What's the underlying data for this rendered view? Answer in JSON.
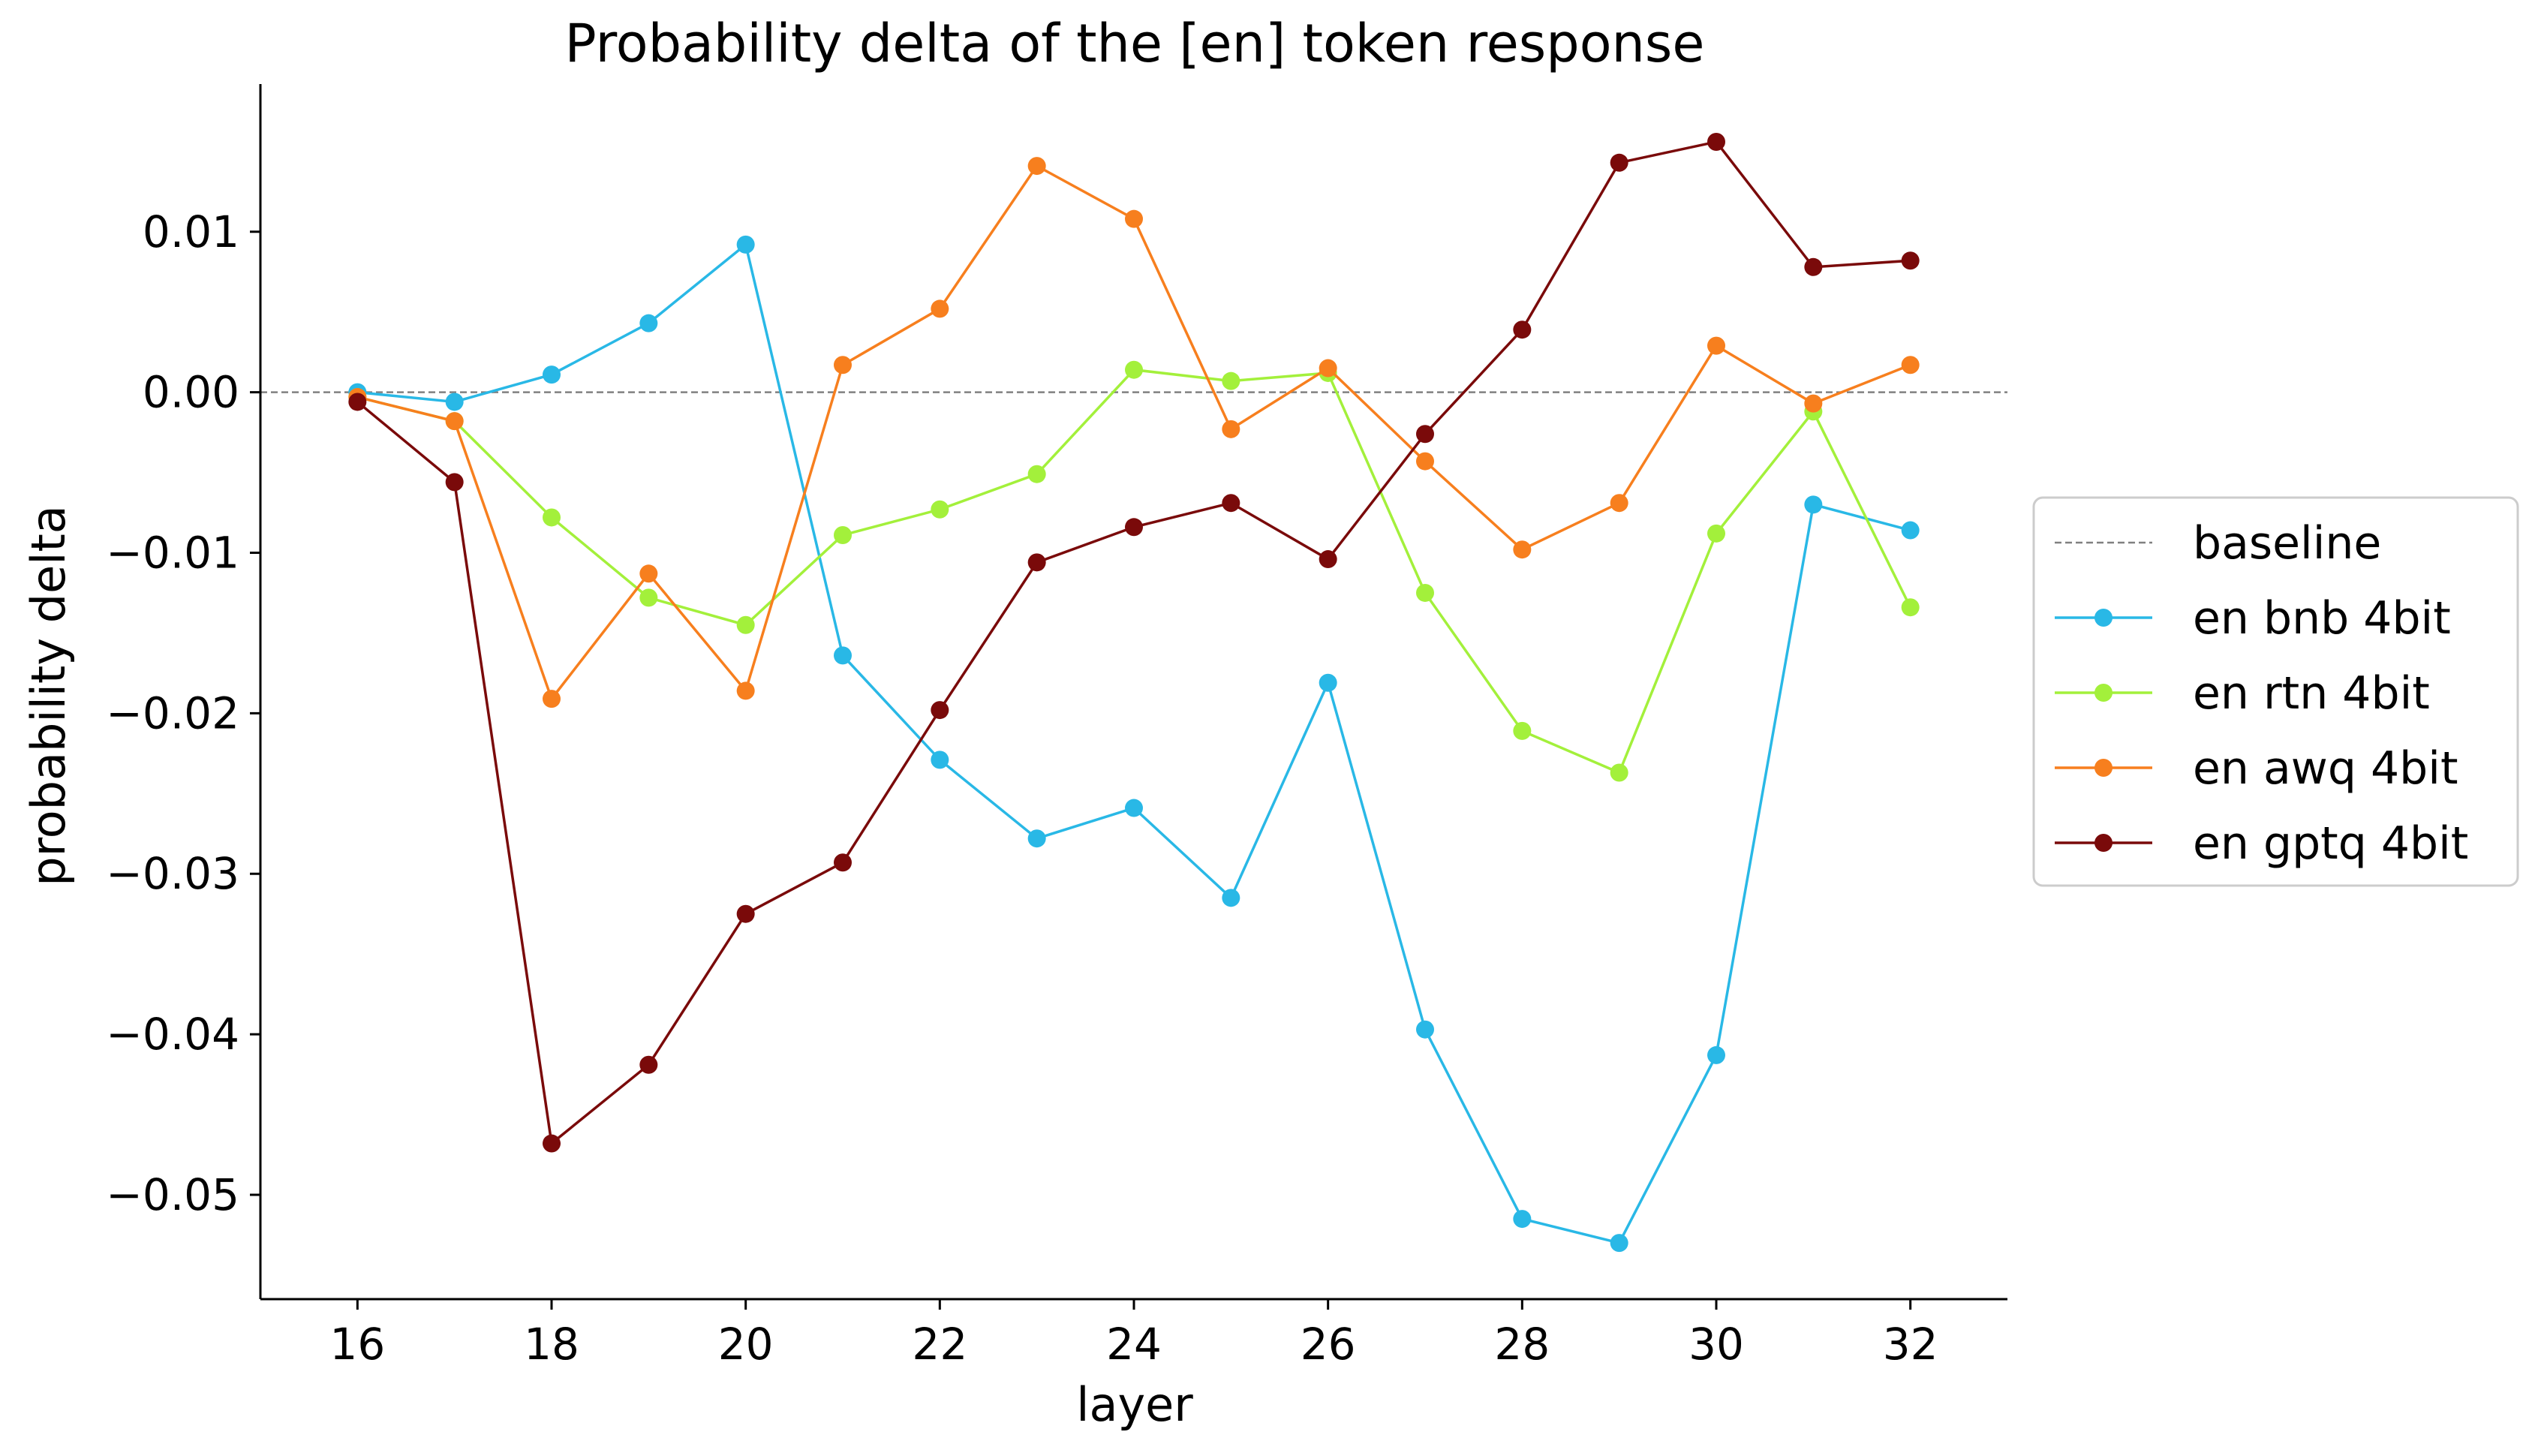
{
  "chart_data": {
    "type": "line",
    "title": "Probability delta of the [en] token response",
    "xlabel": "layer",
    "ylabel": "probability delta",
    "xlim": [
      15,
      33
    ],
    "ylim": [
      -0.0565,
      0.0192
    ],
    "xticks": [
      16,
      18,
      20,
      22,
      24,
      26,
      28,
      30,
      32
    ],
    "yticks": [
      0.01,
      0.0,
      -0.01,
      -0.02,
      -0.03,
      -0.04,
      -0.05
    ],
    "ytick_labels": [
      "0.01",
      "0.00",
      "−0.01",
      "−0.02",
      "−0.03",
      "−0.04",
      "−0.05"
    ],
    "grid": false,
    "legend_position": "center-right-outside",
    "baseline": {
      "name": "baseline",
      "value": 0.0,
      "color": "#808080",
      "style": "dashed"
    },
    "x": [
      16,
      17,
      18,
      19,
      20,
      21,
      22,
      23,
      24,
      25,
      26,
      27,
      28,
      29,
      30,
      31,
      32
    ],
    "series": [
      {
        "name": "en bnb 4bit",
        "color": "#29b8e6",
        "values": [
          0.0,
          -0.0006,
          0.0011,
          0.0043,
          0.0092,
          -0.0164,
          -0.0229,
          -0.0278,
          -0.0259,
          -0.0315,
          -0.0181,
          -0.0397,
          -0.0515,
          -0.053,
          -0.0413,
          -0.007,
          -0.0086
        ]
      },
      {
        "name": "en rtn 4bit",
        "color": "#a3f03b",
        "values": [
          -0.0003,
          -0.0018,
          -0.0078,
          -0.0128,
          -0.0145,
          -0.0089,
          -0.0073,
          -0.0051,
          0.0014,
          0.0007,
          0.0012,
          -0.0125,
          -0.0211,
          -0.0237,
          -0.0088,
          -0.0012,
          -0.0134
        ]
      },
      {
        "name": "en awq 4bit",
        "color": "#f77f1e",
        "values": [
          -0.0003,
          -0.0018,
          -0.0191,
          -0.0113,
          -0.0186,
          0.0017,
          0.0052,
          0.0141,
          0.0108,
          -0.0023,
          0.0015,
          -0.0043,
          -0.0098,
          -0.0069,
          0.0029,
          -0.0007,
          0.0017
        ]
      },
      {
        "name": "en gptq 4bit",
        "color": "#7a0a0a",
        "values": [
          -0.0006,
          -0.0056,
          -0.0468,
          -0.0419,
          -0.0325,
          -0.0293,
          -0.0198,
          -0.0106,
          -0.0084,
          -0.0069,
          -0.0104,
          -0.0026,
          0.0039,
          0.0143,
          0.0156,
          0.0078,
          0.0082
        ]
      }
    ]
  }
}
